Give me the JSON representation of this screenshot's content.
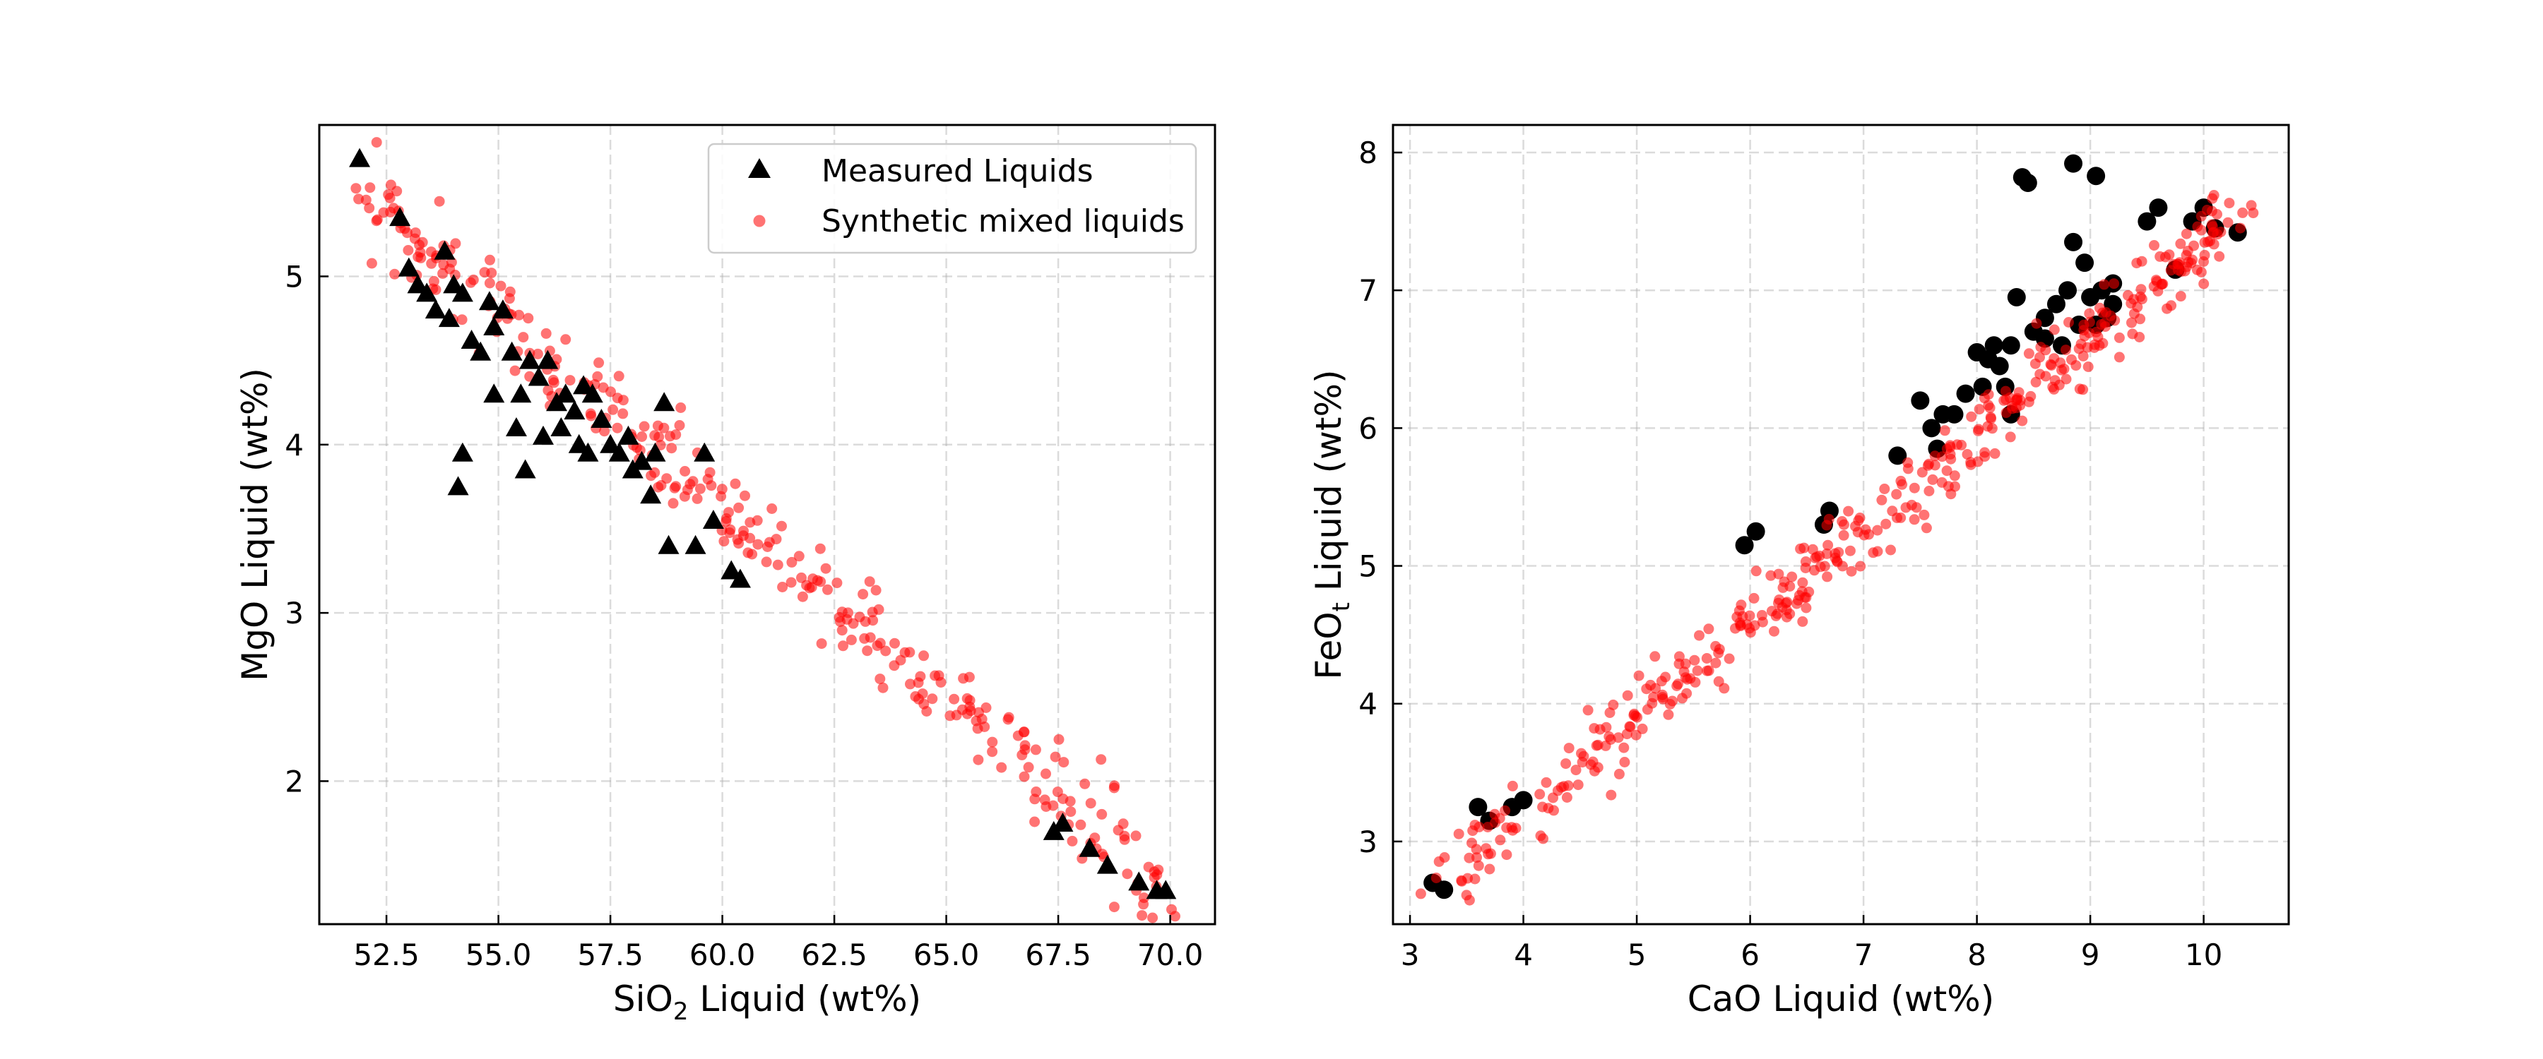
{
  "chart_data": [
    {
      "type": "scatter",
      "xlabel_main": "SiO",
      "xlabel_sub": "2",
      "xlabel_rest": " Liquid (wt%)",
      "ylabel": "MgO Liquid (wt%)",
      "xlim": [
        51.0,
        71.0
      ],
      "ylim": [
        1.15,
        5.9
      ],
      "xticks": [
        52.5,
        55.0,
        57.5,
        60.0,
        62.5,
        65.0,
        67.5,
        70.0
      ],
      "xtick_labels": [
        "52.5",
        "55.0",
        "57.5",
        "60.0",
        "62.5",
        "65.0",
        "67.5",
        "70.0"
      ],
      "yticks": [
        2,
        3,
        4,
        5
      ],
      "ytick_labels": [
        "2",
        "3",
        "4",
        "5"
      ],
      "grid": true,
      "legend": {
        "placement": "top-right",
        "entries": [
          "Measured Liquids",
          "Synthetic mixed liquids"
        ]
      },
      "series": [
        {
          "name": "Measured Liquids",
          "marker": "triangle",
          "color": "#000000",
          "points": [
            [
              51.9,
              5.7
            ],
            [
              52.8,
              5.35
            ],
            [
              53.0,
              5.05
            ],
            [
              53.2,
              4.95
            ],
            [
              53.4,
              4.9
            ],
            [
              53.6,
              4.8
            ],
            [
              53.8,
              5.15
            ],
            [
              53.9,
              4.75
            ],
            [
              54.0,
              4.95
            ],
            [
              54.2,
              4.9
            ],
            [
              54.4,
              4.62
            ],
            [
              54.6,
              4.55
            ],
            [
              54.8,
              4.85
            ],
            [
              54.9,
              4.7
            ],
            [
              55.1,
              4.8
            ],
            [
              55.3,
              4.55
            ],
            [
              55.5,
              4.3
            ],
            [
              55.7,
              4.5
            ],
            [
              55.9,
              4.4
            ],
            [
              56.1,
              4.5
            ],
            [
              56.3,
              4.25
            ],
            [
              56.5,
              4.3
            ],
            [
              56.7,
              4.2
            ],
            [
              56.9,
              4.35
            ],
            [
              57.1,
              4.3
            ],
            [
              57.3,
              4.15
            ],
            [
              57.5,
              4.0
            ],
            [
              57.7,
              3.95
            ],
            [
              57.9,
              4.05
            ],
            [
              58.2,
              3.9
            ],
            [
              58.5,
              3.95
            ],
            [
              58.7,
              4.25
            ],
            [
              54.2,
              3.95
            ],
            [
              54.1,
              3.75
            ],
            [
              54.9,
              4.3
            ],
            [
              55.4,
              4.1
            ],
            [
              55.6,
              3.85
            ],
            [
              56.0,
              4.05
            ],
            [
              56.4,
              4.1
            ],
            [
              56.8,
              4.0
            ],
            [
              57.0,
              3.95
            ],
            [
              58.0,
              3.85
            ],
            [
              58.4,
              3.7
            ],
            [
              58.8,
              3.4
            ],
            [
              59.4,
              3.4
            ],
            [
              59.6,
              3.95
            ],
            [
              59.8,
              3.55
            ],
            [
              60.2,
              3.25
            ],
            [
              60.4,
              3.2
            ],
            [
              67.4,
              1.7
            ],
            [
              67.6,
              1.75
            ],
            [
              68.2,
              1.6
            ],
            [
              68.6,
              1.5
            ],
            [
              69.3,
              1.4
            ],
            [
              69.7,
              1.35
            ],
            [
              69.9,
              1.35
            ]
          ]
        },
        {
          "name": "Synthetic mixed liquids",
          "marker": "circle",
          "color": "#ff0000",
          "trend": {
            "x0": 51.9,
            "y0": 5.5,
            "x1": 69.9,
            "y1": 1.35,
            "count": 320,
            "spread": 0.13,
            "seed": 7
          }
        }
      ]
    },
    {
      "type": "scatter",
      "xlabel": "CaO Liquid (wt%)",
      "ylabel_main": "FeO",
      "ylabel_sub": "t",
      "ylabel_rest": " Liquid (wt%)",
      "xlim": [
        2.85,
        10.75
      ],
      "ylim": [
        2.4,
        8.2
      ],
      "xticks": [
        3,
        4,
        5,
        6,
        7,
        8,
        9,
        10
      ],
      "xtick_labels": [
        "3",
        "4",
        "5",
        "6",
        "7",
        "8",
        "9",
        "10"
      ],
      "yticks": [
        3,
        4,
        5,
        6,
        7,
        8
      ],
      "ytick_labels": [
        "3",
        "4",
        "5",
        "6",
        "7",
        "8"
      ],
      "grid": true,
      "series": [
        {
          "name": "Measured Liquids",
          "marker": "circle",
          "color": "#000000",
          "points": [
            [
              3.2,
              2.7
            ],
            [
              3.3,
              2.65
            ],
            [
              3.6,
              3.25
            ],
            [
              3.7,
              3.15
            ],
            [
              3.9,
              3.25
            ],
            [
              4.0,
              3.3
            ],
            [
              5.95,
              5.15
            ],
            [
              6.05,
              5.25
            ],
            [
              6.65,
              5.3
            ],
            [
              6.7,
              5.4
            ],
            [
              7.3,
              5.8
            ],
            [
              7.5,
              6.2
            ],
            [
              7.6,
              6.0
            ],
            [
              7.65,
              5.85
            ],
            [
              7.7,
              6.1
            ],
            [
              7.8,
              6.1
            ],
            [
              7.9,
              6.25
            ],
            [
              8.0,
              6.55
            ],
            [
              8.05,
              6.3
            ],
            [
              8.1,
              6.5
            ],
            [
              8.15,
              6.6
            ],
            [
              8.2,
              6.45
            ],
            [
              8.25,
              6.3
            ],
            [
              8.3,
              6.1
            ],
            [
              8.3,
              6.6
            ],
            [
              8.35,
              6.95
            ],
            [
              8.4,
              7.82
            ],
            [
              8.45,
              7.78
            ],
            [
              8.5,
              6.7
            ],
            [
              8.6,
              6.8
            ],
            [
              8.6,
              6.65
            ],
            [
              8.7,
              6.9
            ],
            [
              8.75,
              6.6
            ],
            [
              8.8,
              7.0
            ],
            [
              8.85,
              7.35
            ],
            [
              8.85,
              7.92
            ],
            [
              8.9,
              6.75
            ],
            [
              8.95,
              7.2
            ],
            [
              9.0,
              6.95
            ],
            [
              9.05,
              7.83
            ],
            [
              9.05,
              6.75
            ],
            [
              9.1,
              7.0
            ],
            [
              9.15,
              6.8
            ],
            [
              9.2,
              7.05
            ],
            [
              9.2,
              6.9
            ],
            [
              9.5,
              7.5
            ],
            [
              9.6,
              7.6
            ],
            [
              9.75,
              7.15
            ],
            [
              9.9,
              7.5
            ],
            [
              10.0,
              7.6
            ],
            [
              10.1,
              7.45
            ],
            [
              10.3,
              7.42
            ]
          ]
        },
        {
          "name": "Synthetic mixed liquids",
          "marker": "circle",
          "color": "#ff0000",
          "trend": {
            "x0": 3.25,
            "y0": 2.68,
            "x1": 10.3,
            "y1": 7.55,
            "count": 420,
            "spread": 0.11,
            "seed": 13
          }
        }
      ]
    }
  ]
}
